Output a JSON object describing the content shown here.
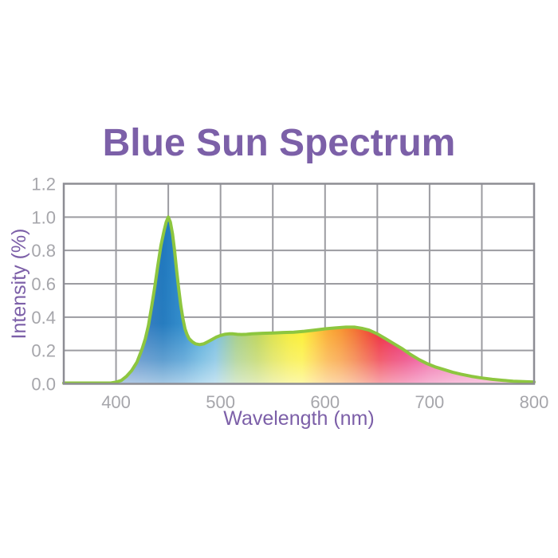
{
  "title": "Blue Sun Spectrum",
  "colors": {
    "background": "#FFFFFF",
    "title": "#7C60A8",
    "axis_label": "#7C5FA8",
    "tick": "#A6A6AB",
    "grid": "#9C9CA1",
    "frame": "#8D8D94",
    "curve": "#8DC63F"
  },
  "chart_data": {
    "type": "area",
    "title": "Blue Sun Spectrum",
    "xlabel": "Wavelength (nm)",
    "ylabel": "Intensity (%)",
    "xlim": [
      350,
      800
    ],
    "ylim": [
      0,
      1.2
    ],
    "grid": "on",
    "grid_step_x_nm": 50,
    "grid_step_y": 0.2,
    "x_ticks": [
      400,
      500,
      600,
      700,
      800
    ],
    "y_tick_labels": [
      "0.0",
      "0.2",
      "0.4",
      "0.6",
      "0.8",
      "1.0",
      "1.2"
    ],
    "curve_color": "#8DC63F",
    "series": [
      {
        "name": "blue-sun-spectrum",
        "points": [
          [
            350,
            0.005
          ],
          [
            395,
            0.005
          ],
          [
            400,
            0.01
          ],
          [
            405,
            0.02
          ],
          [
            410,
            0.045
          ],
          [
            415,
            0.08
          ],
          [
            420,
            0.13
          ],
          [
            425,
            0.21
          ],
          [
            428,
            0.27
          ],
          [
            431,
            0.35
          ],
          [
            434,
            0.46
          ],
          [
            437,
            0.58
          ],
          [
            440,
            0.71
          ],
          [
            443,
            0.83
          ],
          [
            446,
            0.92
          ],
          [
            448,
            0.97
          ],
          [
            450,
            1.0
          ],
          [
            452,
            0.97
          ],
          [
            454,
            0.9
          ],
          [
            456,
            0.8
          ],
          [
            458,
            0.68
          ],
          [
            460,
            0.57
          ],
          [
            462,
            0.47
          ],
          [
            464,
            0.39
          ],
          [
            466,
            0.33
          ],
          [
            468,
            0.295
          ],
          [
            470,
            0.27
          ],
          [
            473,
            0.252
          ],
          [
            476,
            0.24
          ],
          [
            480,
            0.235
          ],
          [
            484,
            0.24
          ],
          [
            488,
            0.253
          ],
          [
            492,
            0.267
          ],
          [
            496,
            0.28
          ],
          [
            500,
            0.29
          ],
          [
            504,
            0.297
          ],
          [
            508,
            0.3
          ],
          [
            512,
            0.3
          ],
          [
            516,
            0.297
          ],
          [
            520,
            0.296
          ],
          [
            525,
            0.297
          ],
          [
            530,
            0.3
          ],
          [
            540,
            0.303
          ],
          [
            550,
            0.305
          ],
          [
            560,
            0.308
          ],
          [
            570,
            0.31
          ],
          [
            580,
            0.315
          ],
          [
            590,
            0.322
          ],
          [
            600,
            0.33
          ],
          [
            610,
            0.335
          ],
          [
            620,
            0.34
          ],
          [
            628,
            0.34
          ],
          [
            635,
            0.333
          ],
          [
            642,
            0.322
          ],
          [
            650,
            0.3
          ],
          [
            658,
            0.27
          ],
          [
            666,
            0.24
          ],
          [
            674,
            0.21
          ],
          [
            682,
            0.175
          ],
          [
            690,
            0.145
          ],
          [
            698,
            0.12
          ],
          [
            706,
            0.1
          ],
          [
            714,
            0.085
          ],
          [
            722,
            0.07
          ],
          [
            730,
            0.058
          ],
          [
            740,
            0.045
          ],
          [
            750,
            0.035
          ],
          [
            760,
            0.027
          ],
          [
            770,
            0.021
          ],
          [
            780,
            0.016
          ],
          [
            790,
            0.013
          ],
          [
            800,
            0.011
          ]
        ]
      }
    ],
    "fill_gradient": [
      {
        "nm": 350,
        "color": "#4A7BB8"
      },
      {
        "nm": 415,
        "color": "#3B79BE"
      },
      {
        "nm": 445,
        "color": "#1B75BC"
      },
      {
        "nm": 465,
        "color": "#2B8ACB"
      },
      {
        "nm": 480,
        "color": "#49A5D8"
      },
      {
        "nm": 495,
        "color": "#6CB8DE"
      },
      {
        "nm": 515,
        "color": "#9CC97E"
      },
      {
        "nm": 535,
        "color": "#B7D14D"
      },
      {
        "nm": 550,
        "color": "#D9DF3A"
      },
      {
        "nm": 565,
        "color": "#F2EA2B"
      },
      {
        "nm": 578,
        "color": "#FBEE23"
      },
      {
        "nm": 590,
        "color": "#FCCB27"
      },
      {
        "nm": 602,
        "color": "#FAA623"
      },
      {
        "nm": 615,
        "color": "#F78D20"
      },
      {
        "nm": 628,
        "color": "#F26A21"
      },
      {
        "nm": 640,
        "color": "#EF4323"
      },
      {
        "nm": 652,
        "color": "#ED1C2E"
      },
      {
        "nm": 664,
        "color": "#EA1A4D"
      },
      {
        "nm": 676,
        "color": "#E91F66"
      },
      {
        "nm": 688,
        "color": "#EA2E80"
      },
      {
        "nm": 700,
        "color": "#EB4592"
      },
      {
        "nm": 725,
        "color": "#EE62A6"
      },
      {
        "nm": 760,
        "color": "#F077B2"
      },
      {
        "nm": 800,
        "color": "#F38BBD"
      }
    ]
  }
}
